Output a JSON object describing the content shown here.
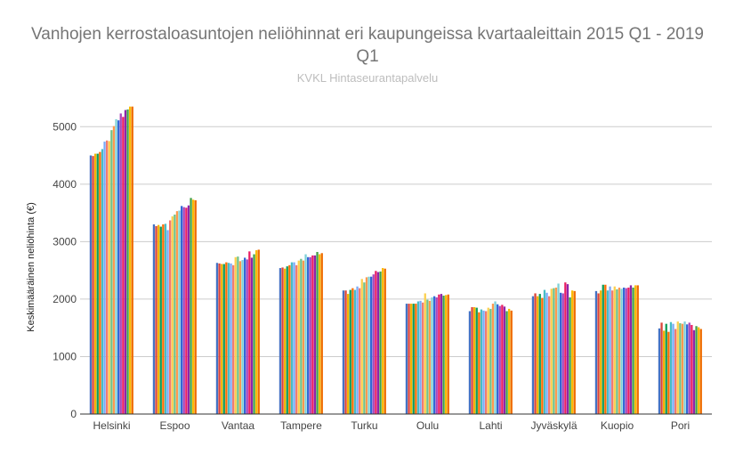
{
  "chart_data": {
    "type": "bar",
    "title": "Vanhojen kerrostaloasuntojen neliöhinnat eri kaupungeissa kvartaaleittain 2015 Q1 - 2019 Q1",
    "subtitle": "KVKL Hintaseurantapalvelu",
    "xlabel": "",
    "ylabel": "Keskimääräinen neliöhinta (€)",
    "ylim": [
      0,
      5500
    ],
    "yticks": [
      0,
      1000,
      2000,
      3000,
      4000,
      5000
    ],
    "grid": true,
    "categories": [
      "Helsinki",
      "Espoo",
      "Vantaa",
      "Tampere",
      "Turku",
      "Oulu",
      "Lahti",
      "Jyväskylä",
      "Kuopio",
      "Pori"
    ],
    "colors": [
      "#4472c4",
      "#db4437",
      "#f4b400",
      "#0f9d58",
      "#ff6d01",
      "#46bdc6",
      "#7baaf7",
      "#f07b72",
      "#fcd04f",
      "#71c287",
      "#ff994d",
      "#7ed1d7",
      "#3367d6",
      "#ab47bc",
      "#e91e63",
      "#8e24aa",
      "#43a047",
      "#fbbc04",
      "#ef6c00"
    ],
    "series": [
      {
        "values": [
          4500,
          3300,
          2630,
          2540,
          2150,
          1920,
          1790,
          2050,
          2140,
          1490
        ]
      },
      {
        "values": [
          4490,
          3270,
          2620,
          2550,
          2150,
          1920,
          1860,
          2100,
          2100,
          1590
        ]
      },
      {
        "values": [
          4530,
          3290,
          2610,
          2530,
          2090,
          1920,
          1860,
          2050,
          2150,
          1450
        ]
      },
      {
        "values": [
          4530,
          3260,
          2610,
          2570,
          2160,
          1920,
          1850,
          2090,
          2250,
          1570
        ]
      },
      {
        "values": [
          4560,
          3300,
          2640,
          2590,
          2190,
          1920,
          1770,
          2020,
          2250,
          1430
        ]
      },
      {
        "values": [
          4610,
          3310,
          2630,
          2640,
          2160,
          1960,
          1820,
          2160,
          2150,
          1600
        ]
      },
      {
        "values": [
          4740,
          3200,
          2620,
          2640,
          2220,
          1970,
          1800,
          2110,
          2220,
          1570
        ]
      },
      {
        "values": [
          4760,
          3370,
          2590,
          2590,
          2190,
          1940,
          1790,
          2050,
          2150,
          1480
        ]
      },
      {
        "values": [
          4750,
          3440,
          2730,
          2670,
          2350,
          2100,
          1850,
          2180,
          2220,
          1610
        ]
      },
      {
        "values": [
          4940,
          3470,
          2740,
          2700,
          2290,
          1990,
          1830,
          2190,
          2170,
          1580
        ]
      },
      {
        "values": [
          5010,
          3530,
          2660,
          2670,
          2380,
          1970,
          1920,
          2200,
          2200,
          1570
        ]
      },
      {
        "values": [
          5130,
          3540,
          2680,
          2780,
          2390,
          2030,
          1960,
          2270,
          2180,
          1610
        ]
      },
      {
        "values": [
          5110,
          3620,
          2720,
          2730,
          2390,
          2050,
          1910,
          2110,
          2200,
          1560
        ]
      },
      {
        "values": [
          5230,
          3600,
          2690,
          2730,
          2430,
          2030,
          1880,
          2100,
          2190,
          1590
        ]
      },
      {
        "values": [
          5170,
          3590,
          2830,
          2760,
          2490,
          2080,
          1900,
          2290,
          2200,
          1550
        ]
      },
      {
        "values": [
          5290,
          3630,
          2720,
          2760,
          2470,
          2090,
          1870,
          2260,
          2240,
          1460
        ]
      },
      {
        "values": [
          5300,
          3760,
          2780,
          2820,
          2480,
          2060,
          1790,
          2030,
          2200,
          1530
        ]
      },
      {
        "values": [
          5350,
          3730,
          2850,
          2780,
          2540,
          2070,
          1830,
          2150,
          2240,
          1510
        ]
      },
      {
        "values": [
          5350,
          3720,
          2860,
          2800,
          2530,
          2080,
          1800,
          2140,
          2240,
          1480
        ]
      }
    ]
  }
}
